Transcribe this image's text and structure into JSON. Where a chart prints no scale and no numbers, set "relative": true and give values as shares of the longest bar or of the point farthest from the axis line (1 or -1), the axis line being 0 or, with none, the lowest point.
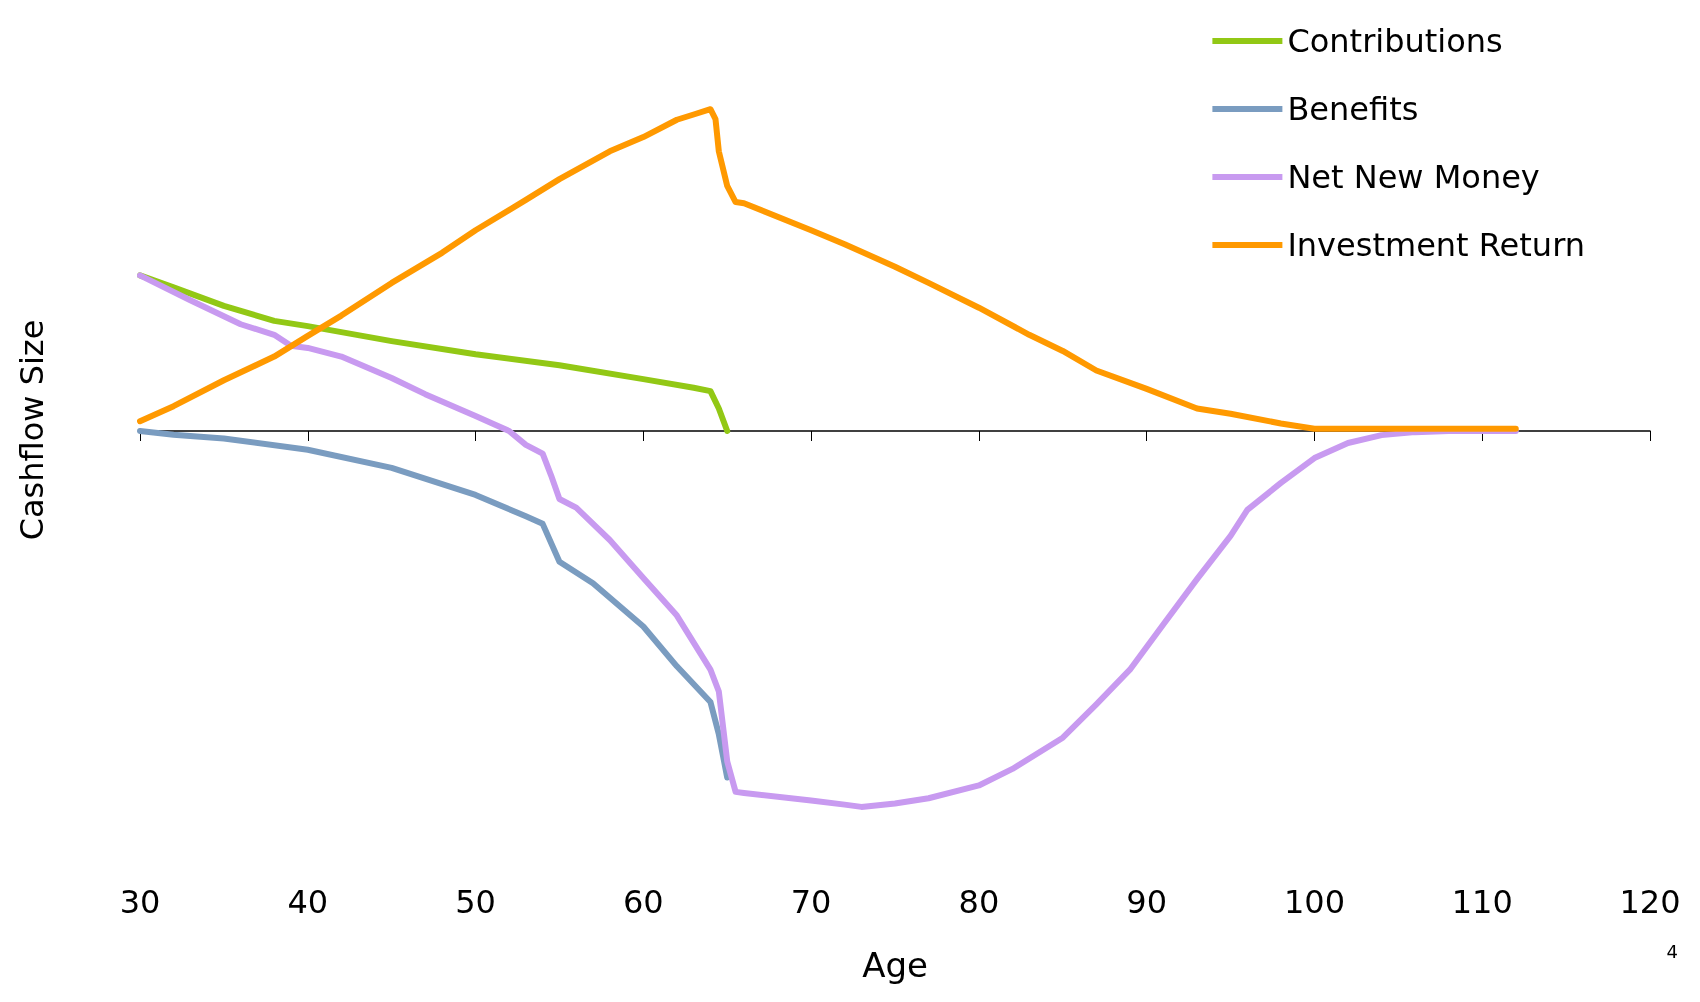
{
  "chart_data": {
    "type": "line",
    "relative": true,
    "xlabel": "Age",
    "ylabel": "Cashflow Size",
    "xlim": [
      30,
      120
    ],
    "xticks": [
      30,
      40,
      50,
      60,
      70,
      80,
      90,
      100,
      110,
      120
    ],
    "grid": false,
    "legend": "top right",
    "marker": "none",
    "line_style": "solid",
    "annotations": [
      "4"
    ],
    "series": [
      {
        "name": "Contributions",
        "color": "#92c815",
        "x": [
          30,
          32,
          35,
          38,
          40,
          45,
          50,
          55,
          60,
          63,
          64,
          64.5,
          65
        ],
        "values": [
          0.414,
          0.382,
          0.333,
          0.293,
          0.279,
          0.239,
          0.204,
          0.175,
          0.138,
          0.115,
          0.106,
          0.06,
          0
        ]
      },
      {
        "name": "Benefits",
        "color": "#7a9cc0",
        "x": [
          30,
          32,
          35,
          40,
          45,
          50,
          53,
          54,
          55,
          57,
          60,
          62,
          64,
          64.5,
          65
        ],
        "values": [
          0,
          -0.01,
          -0.02,
          -0.05,
          -0.098,
          -0.17,
          -0.227,
          -0.247,
          -0.348,
          -0.405,
          -0.52,
          -0.626,
          -0.721,
          -0.807,
          -0.922
        ]
      },
      {
        "name": "Net New Money",
        "color": "#c89af0",
        "x": [
          30,
          33,
          36,
          38,
          39,
          40,
          42,
          45,
          47,
          50,
          51,
          52,
          53,
          54,
          54.5,
          55,
          56,
          58,
          60,
          62,
          64,
          64.5,
          65,
          65.5,
          66,
          70,
          72,
          73,
          75,
          77,
          80,
          82,
          85,
          87,
          89,
          91,
          93,
          95,
          96,
          98,
          100,
          102,
          104,
          106,
          108,
          110,
          112
        ],
        "values": [
          0.414,
          0.348,
          0.284,
          0.256,
          0.227,
          0.221,
          0.198,
          0.141,
          0.098,
          0.04,
          0.02,
          0,
          -0.037,
          -0.06,
          -0.118,
          -0.181,
          -0.204,
          -0.29,
          -0.391,
          -0.491,
          -0.635,
          -0.693,
          -0.879,
          -0.96,
          -0.963,
          -0.983,
          -0.994,
          -1,
          -0.991,
          -0.977,
          -0.943,
          -0.899,
          -0.816,
          -0.727,
          -0.635,
          -0.514,
          -0.394,
          -0.279,
          -0.21,
          -0.138,
          -0.072,
          -0.032,
          -0.011,
          -0.003,
          0,
          0,
          0
        ]
      },
      {
        "name": "Investment Return",
        "color": "#ff9900",
        "x": [
          30,
          32,
          35,
          38,
          40,
          42,
          45,
          48,
          50,
          53,
          55,
          58,
          60,
          62,
          63,
          64,
          64.3,
          64.5,
          65,
          65.5,
          66,
          70,
          72,
          75,
          77,
          80,
          83,
          85,
          87,
          90,
          93,
          95,
          98,
          100,
          112
        ],
        "values": [
          0.026,
          0.066,
          0.135,
          0.198,
          0.253,
          0.307,
          0.394,
          0.474,
          0.534,
          0.615,
          0.67,
          0.744,
          0.782,
          0.828,
          0.842,
          0.856,
          0.83,
          0.744,
          0.652,
          0.609,
          0.606,
          0.534,
          0.497,
          0.437,
          0.394,
          0.328,
          0.256,
          0.213,
          0.161,
          0.112,
          0.06,
          0.046,
          0.02,
          0.006,
          0.006
        ]
      }
    ]
  }
}
